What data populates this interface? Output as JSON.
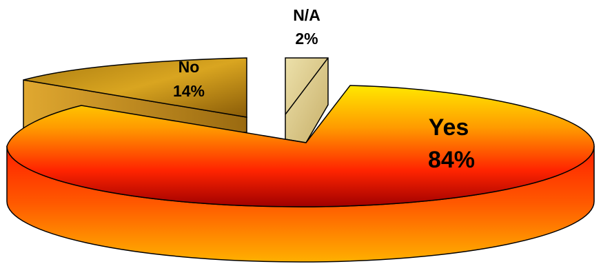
{
  "chart_data": {
    "type": "pie",
    "title": "",
    "slices": [
      {
        "label": "Yes",
        "value": 84,
        "value_label": "84%",
        "color": "#ff2a00"
      },
      {
        "label": "No",
        "value": 14,
        "value_label": "14%",
        "color": "#b8860b"
      },
      {
        "label": "N/A",
        "value": 2,
        "value_label": "2%",
        "color": "#dcc98a"
      }
    ],
    "style": "3d-exploded",
    "legend": "none"
  }
}
